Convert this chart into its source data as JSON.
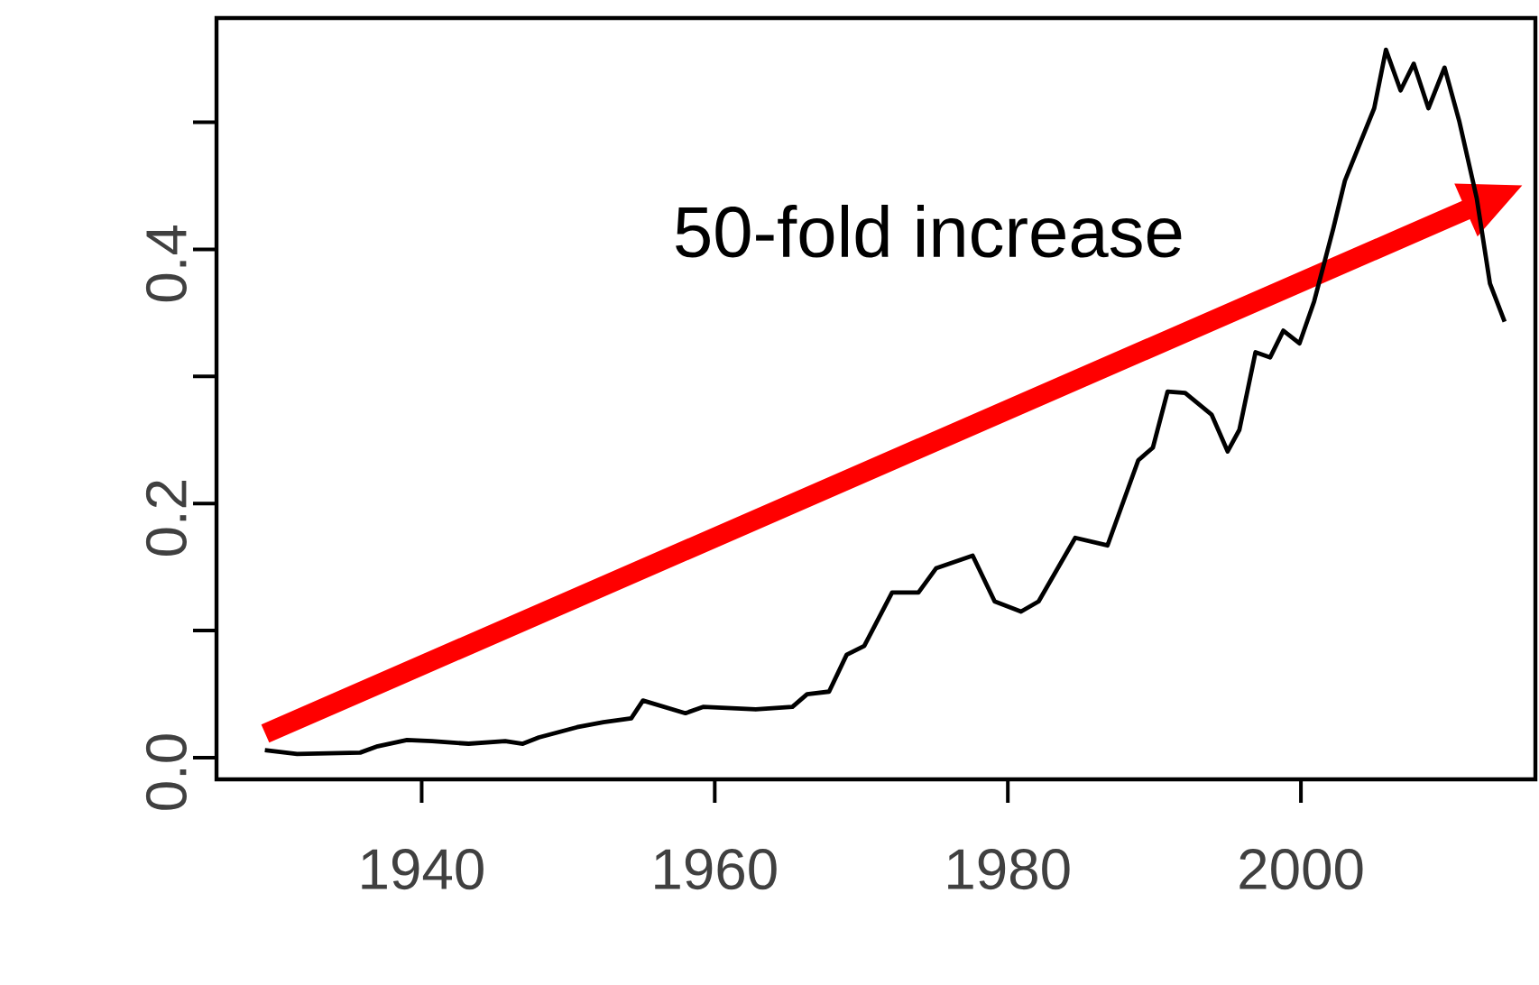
{
  "chart_data": {
    "type": "line",
    "color": "#000000",
    "x": [
      1929.3,
      1931.5,
      1935.8,
      1937,
      1939,
      1940.7,
      1943.2,
      1945.7,
      1946.9,
      1948,
      1950.6,
      1952.4,
      1954.3,
      1955.1,
      1958,
      1959.2,
      1962.8,
      1965.3,
      1966.3,
      1967.8,
      1969.0,
      1970.2,
      1972.1,
      1973.9,
      1975.1,
      1977.6,
      1979.1,
      1980.9,
      1982.1,
      1984.6,
      1986.8,
      1988.9,
      1989.9,
      1990.9,
      1992.1,
      1993.9,
      1995.0,
      1995.8,
      1996.9,
      1997.9,
      1998.8,
      1999.9,
      2000.9,
      2002.2,
      2003.0,
      2005.0,
      2005.8,
      2006.8,
      2007.7,
      2008.7,
      2009.8,
      2010.8,
      2012.0,
      2012.9,
      2013.9
    ],
    "values": [
      0.006,
      0.003,
      0.004,
      0.009,
      0.014,
      0.013,
      0.011,
      0.013,
      0.011,
      0.016,
      0.024,
      0.028,
      0.031,
      0.045,
      0.035,
      0.04,
      0.038,
      0.04,
      0.05,
      0.052,
      0.081,
      0.088,
      0.13,
      0.13,
      0.149,
      0.159,
      0.123,
      0.115,
      0.123,
      0.173,
      0.167,
      0.234,
      0.244,
      0.288,
      0.287,
      0.27,
      0.241,
      0.258,
      0.319,
      0.315,
      0.336,
      0.326,
      0.359,
      0.416,
      0.454,
      0.511,
      0.557,
      0.525,
      0.546,
      0.511,
      0.543,
      0.501,
      0.44,
      0.373,
      0.343
    ],
    "xlim": [
      1926,
      2016
    ],
    "ylim": [
      -0.017,
      0.582
    ],
    "xticks": [
      1940,
      1960,
      1980,
      2000
    ],
    "yticks": [
      {
        "value": 0.0,
        "label": "0.0"
      },
      {
        "value": 0.1,
        "label": null
      },
      {
        "value": 0.2,
        "label": "0.2"
      },
      {
        "value": 0.3,
        "label": null
      },
      {
        "value": 0.4,
        "label": "0.4"
      },
      {
        "value": 0.5,
        "label": null
      }
    ],
    "annotations": [
      "50-fold increase"
    ],
    "grid": false,
    "marker": "none",
    "line_style": "solid"
  }
}
